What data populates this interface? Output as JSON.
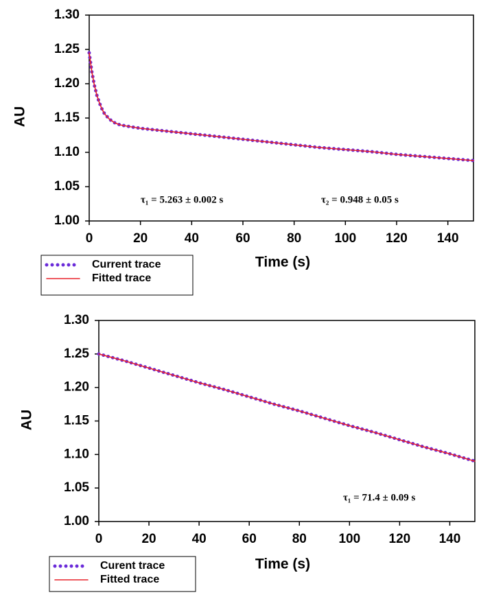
{
  "chart_data": [
    {
      "type": "line",
      "x_label": "Time (s)",
      "y_label": "AU",
      "annotations": [
        "τ₁ = 5.263 ± 0.002 s",
        "τ₂ = 0.948 ± 0.05 s"
      ],
      "x": [
        0,
        1,
        2,
        3,
        4,
        5,
        6,
        8,
        10,
        12,
        15,
        20,
        25,
        30,
        40,
        50,
        60,
        70,
        80,
        90,
        100,
        110,
        120,
        130,
        140,
        150
      ],
      "series": [
        {
          "name": "Current trace",
          "color": "#6a2bd9",
          "style": "dotted",
          "values": [
            1.245,
            1.218,
            1.198,
            1.183,
            1.172,
            1.163,
            1.156,
            1.148,
            1.143,
            1.14,
            1.138,
            1.135,
            1.133,
            1.131,
            1.127,
            1.123,
            1.119,
            1.115,
            1.111,
            1.107,
            1.104,
            1.101,
            1.097,
            1.094,
            1.091,
            1.088
          ]
        },
        {
          "name": "Fitted trace",
          "color": "#e8222a",
          "style": "solid",
          "values": [
            1.245,
            1.218,
            1.198,
            1.183,
            1.172,
            1.163,
            1.156,
            1.148,
            1.143,
            1.14,
            1.138,
            1.135,
            1.133,
            1.131,
            1.127,
            1.123,
            1.119,
            1.115,
            1.111,
            1.107,
            1.104,
            1.101,
            1.097,
            1.094,
            1.091,
            1.088
          ]
        }
      ],
      "xlim": [
        0,
        150
      ],
      "ylim": [
        1.0,
        1.3
      ],
      "xticks": [
        0,
        20,
        40,
        60,
        80,
        100,
        120,
        140
      ],
      "yticks": [
        {
          "value": 1.0,
          "label": "1.00"
        },
        {
          "value": 1.05,
          "label": "1.05"
        },
        {
          "value": 1.1,
          "label": "1.10"
        },
        {
          "value": 1.15,
          "label": "1.15"
        },
        {
          "value": 1.2,
          "label": "1.20"
        },
        {
          "value": 1.25,
          "label": "1.25"
        },
        {
          "value": 1.3,
          "label": "1.30"
        }
      ]
    },
    {
      "type": "line",
      "x_label": "Time (s)",
      "y_label": "AU",
      "annotations": [
        "τ₁ = 71.4 ± 0.09 s"
      ],
      "x": [
        0,
        10,
        20,
        30,
        40,
        50,
        60,
        70,
        80,
        90,
        100,
        110,
        120,
        130,
        140,
        150
      ],
      "series": [
        {
          "name": "Curent trace",
          "color": "#6a2bd9",
          "style": "dotted",
          "values": [
            1.25,
            1.24,
            1.229,
            1.218,
            1.207,
            1.197,
            1.186,
            1.175,
            1.165,
            1.154,
            1.143,
            1.133,
            1.122,
            1.111,
            1.101,
            1.09
          ]
        },
        {
          "name": "Fitted trace",
          "color": "#e8222a",
          "style": "solid",
          "values": [
            1.25,
            1.24,
            1.229,
            1.218,
            1.207,
            1.197,
            1.186,
            1.175,
            1.165,
            1.154,
            1.143,
            1.133,
            1.122,
            1.111,
            1.101,
            1.09
          ]
        }
      ],
      "xlim": [
        0,
        150
      ],
      "ylim": [
        1.0,
        1.3
      ],
      "xticks": [
        0,
        20,
        40,
        60,
        80,
        100,
        120,
        140
      ],
      "yticks": [
        {
          "value": 1.0,
          "label": "1.00"
        },
        {
          "value": 1.05,
          "label": "1.05"
        },
        {
          "value": 1.1,
          "label": "1.10"
        },
        {
          "value": 1.15,
          "label": "1.15"
        },
        {
          "value": 1.2,
          "label": "1.20"
        },
        {
          "value": 1.25,
          "label": "1.25"
        },
        {
          "value": 1.3,
          "label": "1.30"
        }
      ]
    }
  ]
}
